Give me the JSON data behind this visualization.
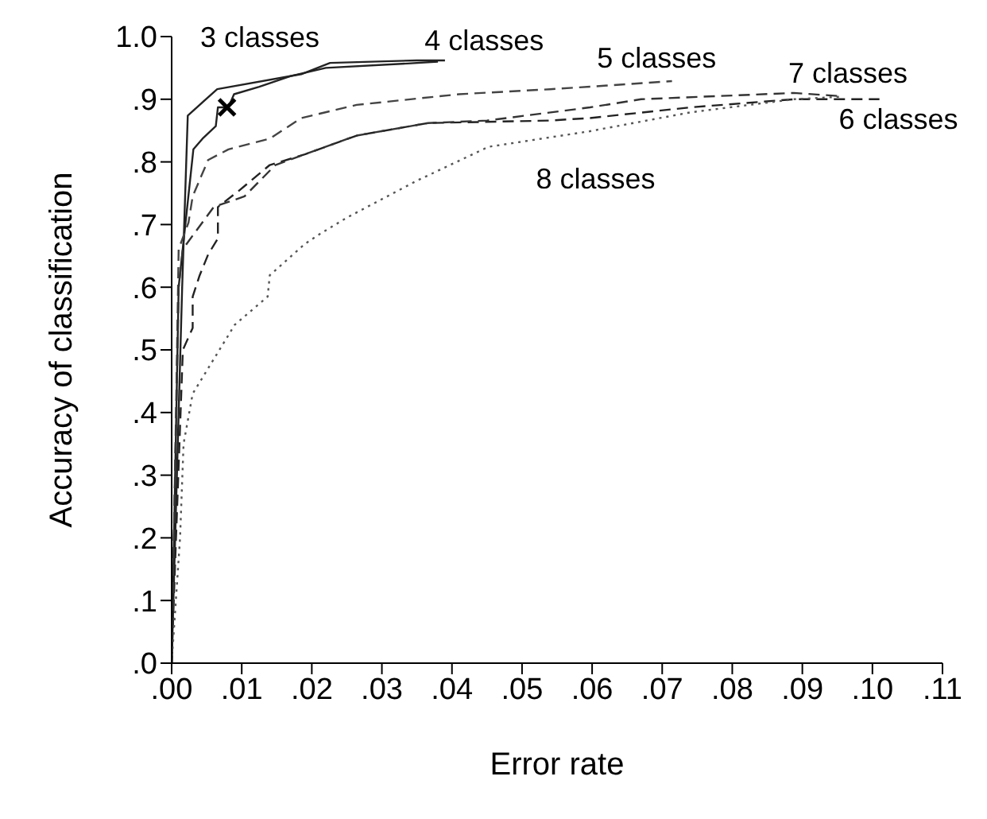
{
  "chart_data": {
    "type": "line",
    "xlabel": "Error rate",
    "ylabel": "Accuracy of classification",
    "xlim": [
      0,
      0.11
    ],
    "ylim": [
      0,
      1
    ],
    "xticks": [
      {
        "value": 0,
        "label": ".00"
      },
      {
        "value": 0.01,
        "label": ".01"
      },
      {
        "value": 0.02,
        "label": ".02"
      },
      {
        "value": 0.03,
        "label": ".03"
      },
      {
        "value": 0.04,
        "label": ".04"
      },
      {
        "value": 0.05,
        "label": ".05"
      },
      {
        "value": 0.06,
        "label": ".06"
      },
      {
        "value": 0.07,
        "label": ".07"
      },
      {
        "value": 0.08,
        "label": ".08"
      },
      {
        "value": 0.09,
        "label": ".09"
      },
      {
        "value": 0.1,
        "label": ".10"
      },
      {
        "value": 0.11,
        "label": ".11"
      }
    ],
    "yticks": [
      {
        "value": 0,
        "label": ".0"
      },
      {
        "value": 0.1,
        "label": ".1"
      },
      {
        "value": 0.2,
        "label": ".2"
      },
      {
        "value": 0.3,
        "label": ".3"
      },
      {
        "value": 0.4,
        "label": ".4"
      },
      {
        "value": 0.5,
        "label": ".5"
      },
      {
        "value": 0.6,
        "label": ".6"
      },
      {
        "value": 0.7,
        "label": ".7"
      },
      {
        "value": 0.8,
        "label": ".8"
      },
      {
        "value": 0.9,
        "label": ".9"
      },
      {
        "value": 1,
        "label": "1.0"
      }
    ],
    "grid": false,
    "legend": false,
    "marker": "none",
    "series": [
      {
        "name": "3 classes",
        "color": "#222222",
        "line_style": "solid",
        "x": [
          0,
          0.0015,
          0.0023,
          0.0065,
          0.0185,
          0.0226,
          0.035,
          0.039
        ],
        "values": [
          0,
          0.6,
          0.874,
          0.916,
          0.94,
          0.958,
          0.962,
          0.962
        ]
      },
      {
        "name": "4 classes",
        "color": "#222222",
        "line_style": "solid",
        "x": [
          0,
          0.001,
          0.0031,
          0.0044,
          0.0063,
          0.0066,
          0.0081,
          0.0089,
          0.0125,
          0.017,
          0.022,
          0.0337,
          0.038
        ],
        "values": [
          0,
          0.6,
          0.82,
          0.837,
          0.857,
          0.887,
          0.887,
          0.908,
          0.92,
          0.937,
          0.95,
          0.957,
          0.96
        ]
      },
      {
        "name": "5 classes",
        "color": "#444444",
        "line_style": "dashed",
        "x": [
          0,
          0.0007,
          0.001,
          0.0024,
          0.003,
          0.0052,
          0.0081,
          0.014,
          0.0185,
          0.0264,
          0.041,
          0.054,
          0.0597,
          0.0714
        ],
        "values": [
          0,
          0.45,
          0.661,
          0.703,
          0.745,
          0.803,
          0.82,
          0.837,
          0.87,
          0.891,
          0.908,
          0.916,
          0.92,
          0.929
        ]
      },
      {
        "name": "6 classes",
        "color": "#222222",
        "line_style": "dashed",
        "x": [
          0,
          0.0003,
          0.0016,
          0.003,
          0.003,
          0.004,
          0.0052,
          0.0066,
          0.0066,
          0.0096,
          0.014,
          0.019,
          0.0264,
          0.0366,
          0.054,
          0.0597,
          0.074,
          0.0888,
          0.101
        ],
        "values": [
          0,
          0.1,
          0.5,
          0.535,
          0.585,
          0.619,
          0.652,
          0.678,
          0.728,
          0.754,
          0.795,
          0.812,
          0.842,
          0.862,
          0.866,
          0.87,
          0.887,
          0.9,
          0.9
        ]
      },
      {
        "name": "7 classes",
        "color": "#333333",
        "line_style": "dashed",
        "x": [
          0,
          0.0005,
          0.001,
          0.0016,
          0.006,
          0.0104,
          0.0148,
          0.019,
          0.0264,
          0.0366,
          0.045,
          0.0597,
          0.067,
          0.0888,
          0.0954
        ],
        "values": [
          0,
          0.3,
          0.6,
          0.661,
          0.728,
          0.745,
          0.795,
          0.812,
          0.842,
          0.862,
          0.866,
          0.887,
          0.9,
          0.91,
          0.905
        ]
      },
      {
        "name": "8 classes",
        "color": "#555555",
        "line_style": "dotted",
        "x": [
          0,
          0.0012,
          0.0017,
          0.003,
          0.006,
          0.009,
          0.0137,
          0.014,
          0.019,
          0.0213,
          0.025,
          0.035,
          0.0452,
          0.0597,
          0.074,
          0.0888,
          0.0954
        ],
        "values": [
          0,
          0.2,
          0.35,
          0.43,
          0.485,
          0.54,
          0.585,
          0.619,
          0.669,
          0.686,
          0.711,
          0.77,
          0.824,
          0.849,
          0.879,
          0.9,
          0.904
        ]
      },
      {
        "type": "scatter",
        "color": "#000000",
        "marker": "cross",
        "x": [
          0.0079
        ],
        "values": [
          0.887
        ]
      }
    ]
  }
}
